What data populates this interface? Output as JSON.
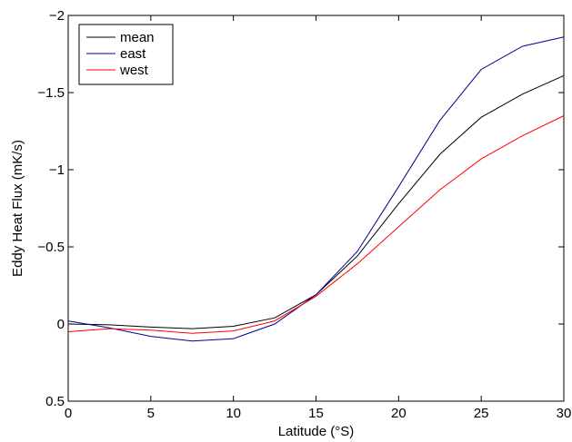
{
  "chart_data": {
    "type": "line",
    "title": "",
    "xlabel": "Latitude (°S)",
    "ylabel": "Eddy Heat Flux (mK/s)",
    "xlim": [
      0,
      30
    ],
    "ylim": [
      -2,
      0.5
    ],
    "y_reversed": true,
    "grid": false,
    "legend_position": "top-left",
    "x_ticks": [
      0,
      5,
      10,
      15,
      20,
      25,
      30
    ],
    "x_tick_labels": [
      "0",
      "5",
      "10",
      "15",
      "20",
      "25",
      "30"
    ],
    "y_ticks": [
      -2,
      -1.5,
      -1,
      -0.5,
      0,
      0.5
    ],
    "y_tick_labels": [
      "−2",
      "−1.5",
      "−1",
      "−0.5",
      "0",
      "0.5"
    ],
    "x": [
      0,
      2.5,
      5,
      7.5,
      10,
      12.5,
      15,
      17.5,
      20,
      22.5,
      25,
      27.5,
      30
    ],
    "series": [
      {
        "name": "mean",
        "color": "#000000",
        "values": [
          0.0,
          0.005,
          0.02,
          0.03,
          0.015,
          -0.04,
          -0.19,
          -0.44,
          -0.78,
          -1.1,
          -1.34,
          -1.49,
          -1.61
        ]
      },
      {
        "name": "east",
        "color": "#00008b",
        "values": [
          -0.02,
          0.025,
          0.08,
          0.11,
          0.095,
          0.0,
          -0.19,
          -0.47,
          -0.89,
          -1.32,
          -1.65,
          -1.8,
          -1.86
        ]
      },
      {
        "name": "west",
        "color": "#ff0000",
        "values": [
          0.05,
          0.03,
          0.04,
          0.06,
          0.045,
          -0.02,
          -0.18,
          -0.39,
          -0.63,
          -0.87,
          -1.07,
          -1.22,
          -1.35
        ]
      }
    ]
  }
}
